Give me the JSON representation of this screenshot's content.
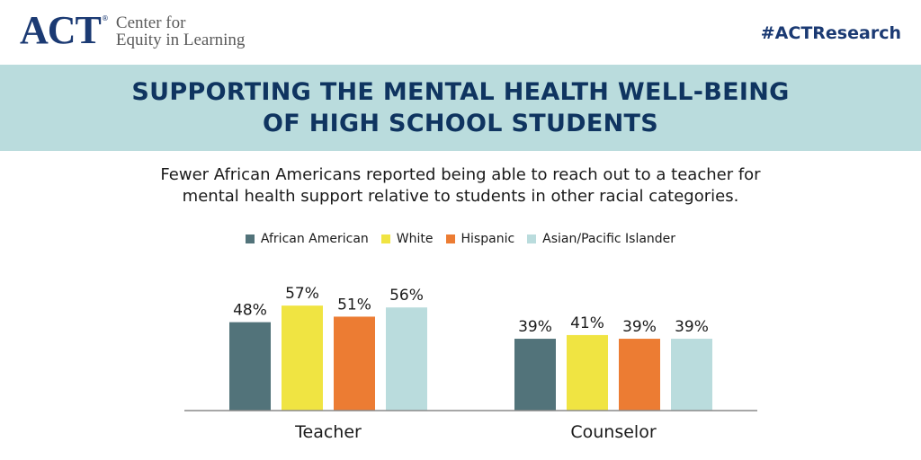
{
  "header": {
    "logo_mark": "ACT",
    "logo_reg": "®",
    "logo_line1": "Center for",
    "logo_line2": "Equity in Learning",
    "hashtag": "#ACTResearch"
  },
  "banner": {
    "line1": "SUPPORTING THE MENTAL HEALTH WELL-BEING",
    "line2": "OF HIGH SCHOOL STUDENTS"
  },
  "subtitle": {
    "line1": "Fewer African Americans reported being able to reach out to a teacher for",
    "line2": "mental health support relative to students in other racial categories."
  },
  "colors": {
    "african_american": "#52737a",
    "white": "#f0e442",
    "hispanic": "#ec7c33",
    "asian_pacific_islander": "#badcdd"
  },
  "chart_data": {
    "type": "bar",
    "categories": [
      "Teacher",
      "Counselor"
    ],
    "series": [
      {
        "name": "African American",
        "color": "#52737a",
        "values": [
          48,
          39
        ],
        "labels": [
          "48%",
          "39%"
        ]
      },
      {
        "name": "White",
        "color": "#f0e442",
        "values": [
          57,
          41
        ],
        "labels": [
          "57%",
          "41%"
        ]
      },
      {
        "name": "Hispanic",
        "color": "#ec7c33",
        "values": [
          51,
          39
        ],
        "labels": [
          "51%",
          "39%"
        ]
      },
      {
        "name": "Asian/Pacific Islander",
        "color": "#badcdd",
        "values": [
          56,
          39
        ],
        "labels": [
          "56%",
          "39%"
        ]
      }
    ],
    "legend_position": "top-center",
    "grid": false,
    "ylim": [
      0,
      100
    ]
  }
}
